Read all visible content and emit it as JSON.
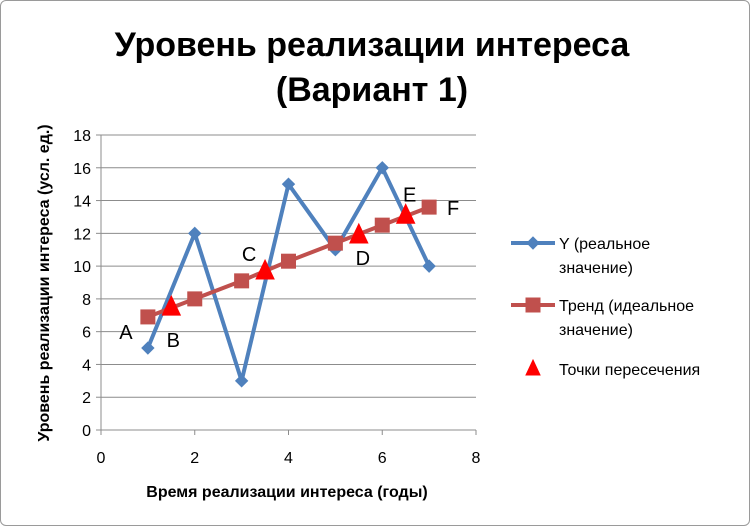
{
  "chart_data": {
    "type": "line",
    "title_lines": [
      "Уровень реализации интереса",
      "(Вариант 1)"
    ],
    "xlabel": "Время реализации интереса (годы)",
    "ylabel": "Уровень реализации интереса (усл. ед.)",
    "xlim": [
      0,
      8
    ],
    "ylim": [
      0,
      18
    ],
    "xticks": [
      0,
      2,
      4,
      6,
      8
    ],
    "yticks": [
      0,
      2,
      4,
      6,
      8,
      10,
      12,
      14,
      16,
      18
    ],
    "grid": "horizontal",
    "legend_position": "right",
    "series": [
      {
        "name": "Y (реальное значение)",
        "legend_lines": [
          "Y (реальное",
          "значение)"
        ],
        "color": "#4F81BD",
        "marker": "diamond",
        "line": true,
        "x": [
          1,
          2,
          3,
          4,
          5,
          6,
          7
        ],
        "y": [
          5,
          12,
          3,
          15,
          11,
          16,
          10
        ]
      },
      {
        "name": "Тренд (идеальное значение)",
        "legend_lines": [
          "Тренд (идеальное",
          "значение)"
        ],
        "color": "#C0504D",
        "marker": "square",
        "line": true,
        "x": [
          1,
          2,
          3,
          4,
          5,
          6,
          7
        ],
        "y": [
          6.9,
          8.0,
          9.1,
          10.3,
          11.4,
          12.5,
          13.6
        ]
      },
      {
        "name": "Точки пересечения",
        "legend_lines": [
          "Точки пересечения"
        ],
        "color": "#FF0000",
        "marker": "triangle",
        "line": false,
        "x": [
          1.5,
          3.5,
          5.5,
          6.5
        ],
        "y": [
          7.5,
          9.7,
          11.9,
          13.1
        ]
      }
    ],
    "annotations": [
      {
        "text": "A",
        "x": 1,
        "y": 6.9
      },
      {
        "text": "B",
        "x": 1.5,
        "y": 7.5
      },
      {
        "text": "C",
        "x": 3.5,
        "y": 9.7
      },
      {
        "text": "D",
        "x": 5.5,
        "y": 11.9
      },
      {
        "text": "E",
        "x": 6.5,
        "y": 13.1
      },
      {
        "text": "F",
        "x": 7,
        "y": 13.6
      }
    ]
  }
}
